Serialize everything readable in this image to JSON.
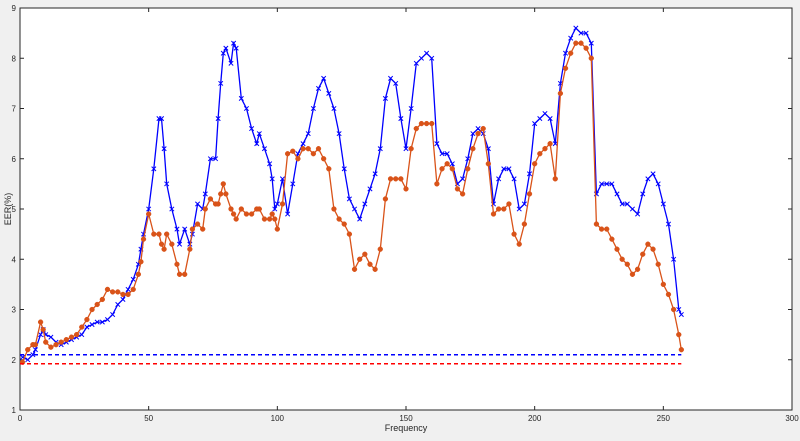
{
  "chart_data": {
    "type": "line",
    "title": "",
    "xlabel": "Frequency",
    "ylabel": "EER(%)",
    "xlim": [
      0,
      300
    ],
    "ylim": [
      1,
      9
    ],
    "xticks": [
      0,
      50,
      100,
      150,
      200,
      250,
      300
    ],
    "yticks": [
      1,
      2,
      3,
      4,
      5,
      6,
      7,
      8,
      9
    ],
    "grid": false,
    "legend": "none",
    "series": [
      {
        "color": "#0000ff",
        "marker": "x",
        "style": "solid",
        "points": [
          [
            1,
            2.05
          ],
          [
            3,
            2.0
          ],
          [
            5,
            2.1
          ],
          [
            6,
            2.2
          ],
          [
            8,
            2.5
          ],
          [
            9,
            2.6
          ],
          [
            10,
            2.5
          ],
          [
            12,
            2.45
          ],
          [
            14,
            2.35
          ],
          [
            16,
            2.3
          ],
          [
            18,
            2.35
          ],
          [
            20,
            2.4
          ],
          [
            22,
            2.45
          ],
          [
            24,
            2.5
          ],
          [
            26,
            2.65
          ],
          [
            28,
            2.7
          ],
          [
            30,
            2.75
          ],
          [
            32,
            2.75
          ],
          [
            34,
            2.8
          ],
          [
            36,
            2.9
          ],
          [
            38,
            3.1
          ],
          [
            40,
            3.2
          ],
          [
            42,
            3.4
          ],
          [
            44,
            3.6
          ],
          [
            46,
            3.9
          ],
          [
            47,
            4.2
          ],
          [
            48,
            4.5
          ],
          [
            50,
            5.0
          ],
          [
            52,
            5.8
          ],
          [
            54,
            6.8
          ],
          [
            55,
            6.8
          ],
          [
            56,
            6.2
          ],
          [
            57,
            5.5
          ],
          [
            59,
            5.0
          ],
          [
            61,
            4.6
          ],
          [
            62,
            4.3
          ],
          [
            64,
            4.6
          ],
          [
            66,
            4.3
          ],
          [
            67,
            4.5
          ],
          [
            69,
            5.1
          ],
          [
            71,
            5.0
          ],
          [
            72,
            5.3
          ],
          [
            74,
            6.0
          ],
          [
            76,
            6.0
          ],
          [
            77,
            6.8
          ],
          [
            78,
            7.5
          ],
          [
            79,
            8.1
          ],
          [
            80,
            8.2
          ],
          [
            82,
            7.9
          ],
          [
            83,
            8.3
          ],
          [
            84,
            8.2
          ],
          [
            86,
            7.2
          ],
          [
            88,
            7.0
          ],
          [
            90,
            6.6
          ],
          [
            92,
            6.3
          ],
          [
            93,
            6.5
          ],
          [
            95,
            6.2
          ],
          [
            97,
            5.9
          ],
          [
            98,
            5.6
          ],
          [
            99,
            5.0
          ],
          [
            100,
            5.1
          ],
          [
            102,
            5.6
          ],
          [
            104,
            4.9
          ],
          [
            106,
            5.5
          ],
          [
            108,
            6.1
          ],
          [
            110,
            6.3
          ],
          [
            112,
            6.5
          ],
          [
            114,
            7.0
          ],
          [
            116,
            7.4
          ],
          [
            118,
            7.6
          ],
          [
            120,
            7.3
          ],
          [
            122,
            7.0
          ],
          [
            124,
            6.5
          ],
          [
            126,
            5.8
          ],
          [
            128,
            5.2
          ],
          [
            130,
            5.0
          ],
          [
            132,
            4.8
          ],
          [
            134,
            5.1
          ],
          [
            136,
            5.4
          ],
          [
            138,
            5.7
          ],
          [
            140,
            6.2
          ],
          [
            142,
            7.2
          ],
          [
            144,
            7.6
          ],
          [
            146,
            7.5
          ],
          [
            148,
            6.8
          ],
          [
            150,
            6.2
          ],
          [
            152,
            7.0
          ],
          [
            154,
            7.9
          ],
          [
            156,
            8.0
          ],
          [
            158,
            8.1
          ],
          [
            160,
            8.0
          ],
          [
            162,
            6.3
          ],
          [
            164,
            6.1
          ],
          [
            166,
            6.1
          ],
          [
            168,
            5.9
          ],
          [
            170,
            5.5
          ],
          [
            172,
            5.6
          ],
          [
            174,
            6.0
          ],
          [
            176,
            6.5
          ],
          [
            178,
            6.6
          ],
          [
            180,
            6.5
          ],
          [
            182,
            6.2
          ],
          [
            184,
            5.1
          ],
          [
            186,
            5.6
          ],
          [
            188,
            5.8
          ],
          [
            190,
            5.8
          ],
          [
            192,
            5.6
          ],
          [
            194,
            5.0
          ],
          [
            196,
            5.1
          ],
          [
            198,
            5.7
          ],
          [
            200,
            6.7
          ],
          [
            202,
            6.8
          ],
          [
            204,
            6.9
          ],
          [
            206,
            6.8
          ],
          [
            208,
            6.3
          ],
          [
            210,
            7.5
          ],
          [
            212,
            8.1
          ],
          [
            214,
            8.4
          ],
          [
            216,
            8.6
          ],
          [
            218,
            8.5
          ],
          [
            220,
            8.5
          ],
          [
            222,
            8.3
          ],
          [
            224,
            5.3
          ],
          [
            226,
            5.5
          ],
          [
            228,
            5.5
          ],
          [
            230,
            5.5
          ],
          [
            232,
            5.3
          ],
          [
            234,
            5.1
          ],
          [
            236,
            5.1
          ],
          [
            238,
            5.0
          ],
          [
            240,
            4.9
          ],
          [
            242,
            5.3
          ],
          [
            244,
            5.6
          ],
          [
            246,
            5.7
          ],
          [
            248,
            5.5
          ],
          [
            250,
            5.1
          ],
          [
            252,
            4.7
          ],
          [
            254,
            4.0
          ],
          [
            256,
            3.0
          ],
          [
            257,
            2.9
          ]
        ]
      },
      {
        "color": "#d95319",
        "marker": "o",
        "style": "solid",
        "points": [
          [
            1,
            1.95
          ],
          [
            3,
            2.2
          ],
          [
            5,
            2.3
          ],
          [
            6,
            2.3
          ],
          [
            8,
            2.75
          ],
          [
            9,
            2.6
          ],
          [
            10,
            2.35
          ],
          [
            12,
            2.25
          ],
          [
            14,
            2.3
          ],
          [
            16,
            2.35
          ],
          [
            18,
            2.4
          ],
          [
            20,
            2.45
          ],
          [
            22,
            2.5
          ],
          [
            24,
            2.65
          ],
          [
            26,
            2.8
          ],
          [
            28,
            3.0
          ],
          [
            30,
            3.1
          ],
          [
            32,
            3.2
          ],
          [
            34,
            3.4
          ],
          [
            36,
            3.35
          ],
          [
            38,
            3.35
          ],
          [
            40,
            3.3
          ],
          [
            42,
            3.3
          ],
          [
            44,
            3.4
          ],
          [
            46,
            3.7
          ],
          [
            47,
            3.95
          ],
          [
            48,
            4.4
          ],
          [
            50,
            4.9
          ],
          [
            52,
            4.5
          ],
          [
            54,
            4.5
          ],
          [
            55,
            4.3
          ],
          [
            56,
            4.2
          ],
          [
            57,
            4.5
          ],
          [
            59,
            4.3
          ],
          [
            61,
            3.9
          ],
          [
            62,
            3.7
          ],
          [
            64,
            3.7
          ],
          [
            66,
            4.2
          ],
          [
            67,
            4.6
          ],
          [
            69,
            4.7
          ],
          [
            71,
            4.6
          ],
          [
            72,
            5.0
          ],
          [
            74,
            5.2
          ],
          [
            76,
            5.1
          ],
          [
            77,
            5.1
          ],
          [
            78,
            5.3
          ],
          [
            79,
            5.5
          ],
          [
            80,
            5.3
          ],
          [
            82,
            5.0
          ],
          [
            83,
            4.9
          ],
          [
            84,
            4.8
          ],
          [
            86,
            5.0
          ],
          [
            88,
            4.9
          ],
          [
            90,
            4.9
          ],
          [
            92,
            5.0
          ],
          [
            93,
            5.0
          ],
          [
            95,
            4.8
          ],
          [
            97,
            4.8
          ],
          [
            98,
            4.9
          ],
          [
            99,
            4.8
          ],
          [
            100,
            4.6
          ],
          [
            102,
            5.1
          ],
          [
            104,
            6.1
          ],
          [
            106,
            6.15
          ],
          [
            108,
            6.0
          ],
          [
            110,
            6.2
          ],
          [
            112,
            6.2
          ],
          [
            114,
            6.1
          ],
          [
            116,
            6.2
          ],
          [
            118,
            6.0
          ],
          [
            120,
            5.8
          ],
          [
            122,
            5.0
          ],
          [
            124,
            4.8
          ],
          [
            126,
            4.7
          ],
          [
            128,
            4.5
          ],
          [
            130,
            3.8
          ],
          [
            132,
            4.0
          ],
          [
            134,
            4.1
          ],
          [
            136,
            3.9
          ],
          [
            138,
            3.8
          ],
          [
            140,
            4.2
          ],
          [
            142,
            5.2
          ],
          [
            144,
            5.6
          ],
          [
            146,
            5.6
          ],
          [
            148,
            5.6
          ],
          [
            150,
            5.4
          ],
          [
            152,
            6.2
          ],
          [
            154,
            6.6
          ],
          [
            156,
            6.7
          ],
          [
            158,
            6.7
          ],
          [
            160,
            6.7
          ],
          [
            162,
            5.5
          ],
          [
            164,
            5.8
          ],
          [
            166,
            5.9
          ],
          [
            168,
            5.8
          ],
          [
            170,
            5.4
          ],
          [
            172,
            5.3
          ],
          [
            174,
            5.8
          ],
          [
            176,
            6.2
          ],
          [
            178,
            6.5
          ],
          [
            180,
            6.6
          ],
          [
            182,
            5.9
          ],
          [
            184,
            4.9
          ],
          [
            186,
            5.0
          ],
          [
            188,
            5.0
          ],
          [
            190,
            5.1
          ],
          [
            192,
            4.5
          ],
          [
            194,
            4.3
          ],
          [
            196,
            4.7
          ],
          [
            198,
            5.3
          ],
          [
            200,
            5.9
          ],
          [
            202,
            6.1
          ],
          [
            204,
            6.2
          ],
          [
            206,
            6.3
          ],
          [
            208,
            5.6
          ],
          [
            210,
            7.3
          ],
          [
            212,
            7.8
          ],
          [
            214,
            8.1
          ],
          [
            216,
            8.3
          ],
          [
            218,
            8.3
          ],
          [
            220,
            8.2
          ],
          [
            222,
            8.0
          ],
          [
            224,
            4.7
          ],
          [
            226,
            4.6
          ],
          [
            228,
            4.6
          ],
          [
            230,
            4.4
          ],
          [
            232,
            4.2
          ],
          [
            234,
            4.0
          ],
          [
            236,
            3.9
          ],
          [
            238,
            3.7
          ],
          [
            240,
            3.8
          ],
          [
            242,
            4.1
          ],
          [
            244,
            4.3
          ],
          [
            246,
            4.2
          ],
          [
            248,
            3.9
          ],
          [
            250,
            3.5
          ],
          [
            252,
            3.3
          ],
          [
            254,
            3.0
          ],
          [
            256,
            2.5
          ],
          [
            257,
            2.2
          ]
        ]
      },
      {
        "color": "#0000ff",
        "marker": "none",
        "style": "dashed",
        "points": [
          [
            0,
            2.1
          ],
          [
            257,
            2.1
          ]
        ]
      },
      {
        "color": "#ff0000",
        "marker": "none",
        "style": "dashed",
        "points": [
          [
            0,
            1.92
          ],
          [
            257,
            1.92
          ]
        ]
      }
    ]
  }
}
